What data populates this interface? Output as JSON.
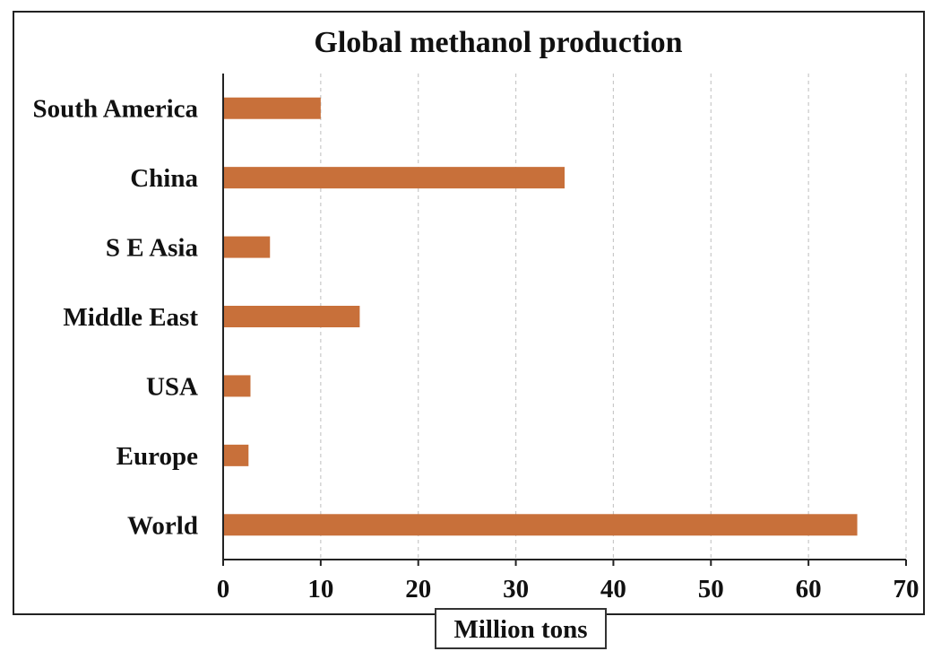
{
  "chart_data": {
    "type": "bar",
    "orientation": "horizontal",
    "title": "Global methanol production",
    "xlabel": "Million tons",
    "ylabel": "",
    "categories": [
      "South America",
      "China",
      "S E Asia",
      "Middle East",
      "USA",
      "Europe",
      "World"
    ],
    "values": [
      10,
      35,
      4.8,
      14,
      2.8,
      2.6,
      65
    ],
    "xlim": [
      0,
      70
    ],
    "xticks": [
      0,
      10,
      20,
      30,
      40,
      50,
      60,
      70
    ],
    "grid": "vertical dashed",
    "legend": "none",
    "bar_color": "#C8703A"
  }
}
